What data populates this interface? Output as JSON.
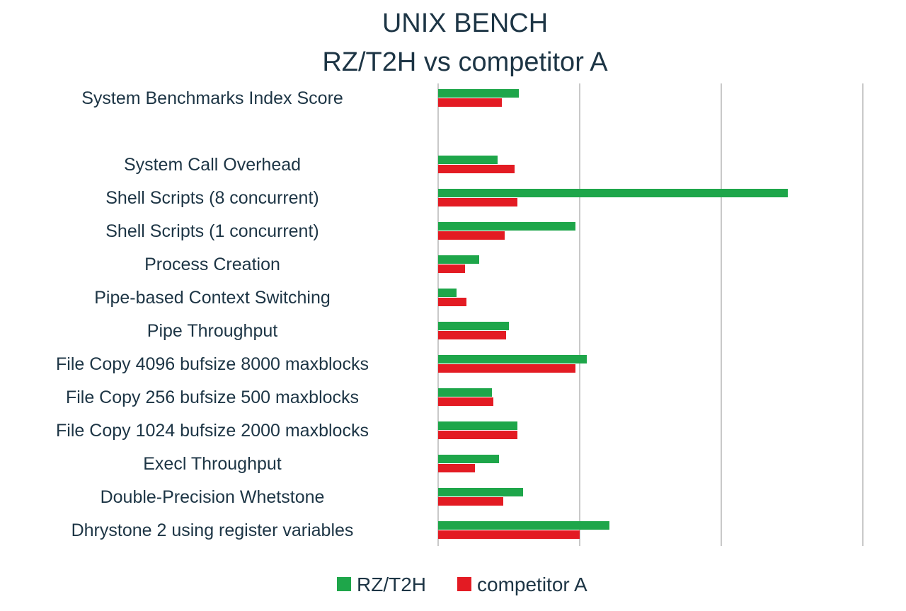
{
  "chart_data": {
    "type": "bar",
    "orientation": "horizontal",
    "title": "UNIX BENCH",
    "subtitle": "RZ/T2H vs competitor A",
    "categories": [
      "System Benchmarks Index Score",
      "",
      "System Call Overhead",
      "Shell Scripts (8 concurrent)",
      "Shell Scripts (1 concurrent)",
      "Process Creation",
      "Pipe-based Context Switching",
      "Pipe Throughput",
      "File Copy 4096 bufsize 8000 maxblocks",
      "File Copy 256 bufsize 500 maxblocks",
      "File Copy 1024 bufsize 2000 maxblocks",
      "Execl Throughput",
      "Double-Precision Whetstone",
      "Dhrystone 2 using register variables"
    ],
    "series": [
      {
        "name": "RZ/T2H",
        "color": "#1ea64a",
        "values": [
          0.57,
          null,
          0.42,
          2.47,
          0.97,
          0.29,
          0.13,
          0.5,
          1.05,
          0.38,
          0.56,
          0.43,
          0.6,
          1.21
        ]
      },
      {
        "name": "competitor A",
        "color": "#e31b23",
        "values": [
          0.45,
          null,
          0.54,
          0.56,
          0.47,
          0.19,
          0.2,
          0.48,
          0.97,
          0.39,
          0.56,
          0.26,
          0.46,
          1.0
        ]
      }
    ],
    "xlim": [
      0,
      3
    ],
    "gridlines": [
      0,
      1,
      2,
      3
    ],
    "tick_labels_visible": false,
    "grid": true,
    "legend_position": "bottom"
  }
}
